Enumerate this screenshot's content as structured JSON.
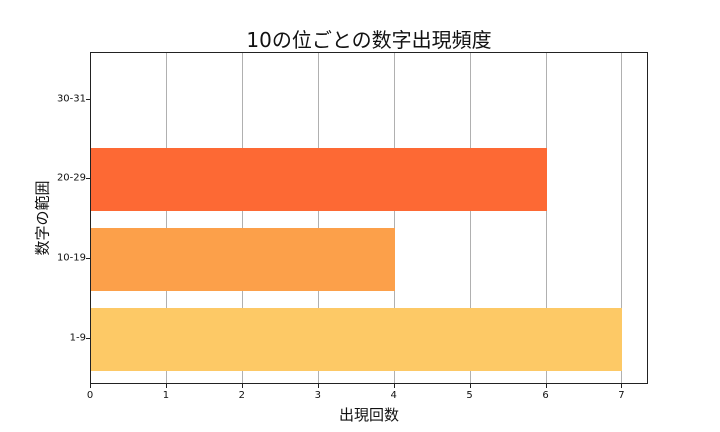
{
  "chart_data": {
    "type": "bar",
    "orientation": "horizontal",
    "title": "10の位ごとの数字出現頻度",
    "xlabel": "出現回数",
    "ylabel": "数字の範囲",
    "categories": [
      "1-9",
      "10-19",
      "20-29",
      "30-31"
    ],
    "values": [
      7,
      4,
      6,
      0
    ],
    "colors": [
      "#fdc966",
      "#fca04a",
      "#fd6934",
      "#ffffff"
    ],
    "xlim": [
      0,
      7.35
    ],
    "xticks": [
      "0",
      "1",
      "2",
      "3",
      "4",
      "5",
      "6",
      "7"
    ],
    "grid": "x",
    "legend": null
  }
}
